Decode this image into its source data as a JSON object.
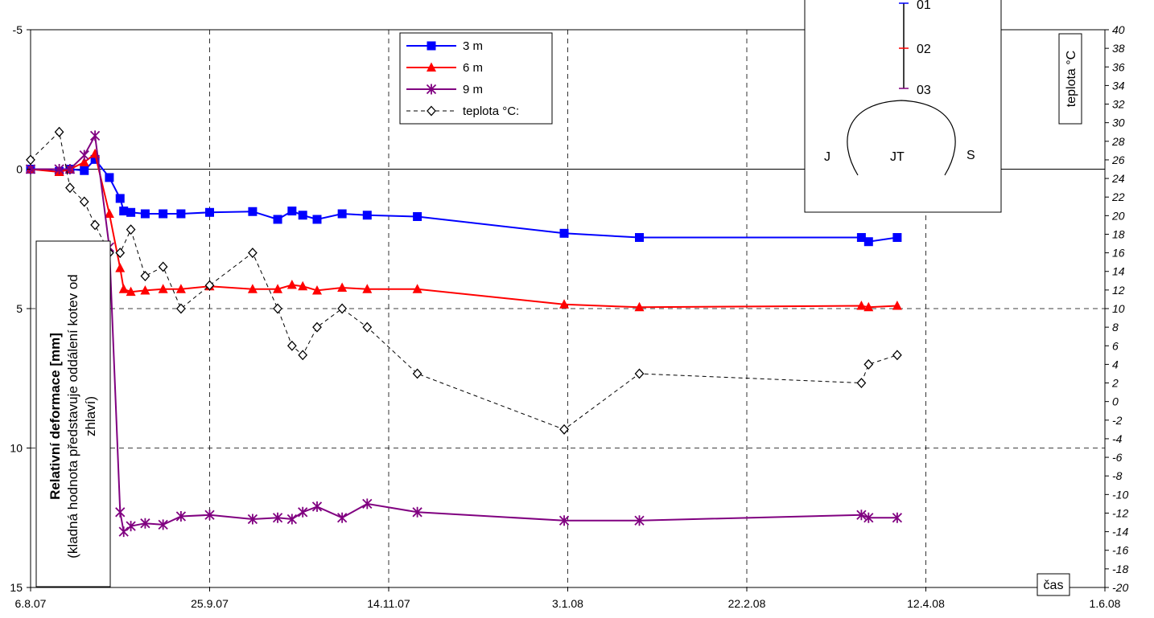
{
  "chart_data": {
    "type": "line",
    "y_axis_left": {
      "title": "Relativní deformace [mm]",
      "subtitle": "(kladná hodnota představuje oddálení kotev od zhlaví)",
      "range": [
        -5,
        15
      ],
      "inverted": true,
      "ticks": [
        "-5",
        "0",
        "5",
        "10",
        "15"
      ]
    },
    "y_axis_right": {
      "title": "teplota °C",
      "range": [
        -20,
        40
      ],
      "ticks": [
        "40",
        "38",
        "36",
        "34",
        "32",
        "30",
        "28",
        "26",
        "24",
        "22",
        "20",
        "18",
        "16",
        "14",
        "12",
        "10",
        "8",
        "6",
        "4",
        "2",
        "0",
        "-2",
        "-4",
        "-6",
        "-8",
        "-10",
        "-12",
        "-14",
        "-16",
        "-18",
        "-20"
      ]
    },
    "x_axis": {
      "title": "čas",
      "ticks": [
        {
          "label": "6.8.07",
          "day": 0
        },
        {
          "label": "25.9.07",
          "day": 50
        },
        {
          "label": "14.11.07",
          "day": 100
        },
        {
          "label": "3.1.08",
          "day": 150
        },
        {
          "label": "22.2.08",
          "day": 200
        },
        {
          "label": "12.4.08",
          "day": 250
        },
        {
          "label": "1.6.08",
          "day": 300
        }
      ],
      "range": [
        0,
        300
      ]
    },
    "series": [
      {
        "name": "3 m",
        "color": "#0000ff",
        "marker": "square",
        "axis": "left",
        "points": [
          [
            0,
            0
          ],
          [
            8,
            0.08
          ],
          [
            11,
            0
          ],
          [
            15,
            0.05
          ],
          [
            18,
            -0.35
          ],
          [
            22,
            0.3
          ],
          [
            25,
            1.05
          ],
          [
            26,
            1.5
          ],
          [
            28,
            1.55
          ],
          [
            32,
            1.6
          ],
          [
            37,
            1.6
          ],
          [
            42,
            1.6
          ],
          [
            50,
            1.55
          ],
          [
            62,
            1.52
          ],
          [
            69,
            1.8
          ],
          [
            73,
            1.5
          ],
          [
            76,
            1.65
          ],
          [
            80,
            1.8
          ],
          [
            87,
            1.6
          ],
          [
            94,
            1.65
          ],
          [
            108,
            1.7
          ],
          [
            149,
            2.3
          ],
          [
            170,
            2.45
          ],
          [
            232,
            2.45
          ],
          [
            234,
            2.6
          ],
          [
            242,
            2.45
          ]
        ]
      },
      {
        "name": "6 m",
        "color": "#ff0000",
        "marker": "triangle",
        "axis": "left",
        "points": [
          [
            0,
            0
          ],
          [
            8,
            0.1
          ],
          [
            11,
            0
          ],
          [
            15,
            -0.25
          ],
          [
            18,
            -0.55
          ],
          [
            22,
            1.6
          ],
          [
            25,
            3.55
          ],
          [
            26,
            4.3
          ],
          [
            28,
            4.4
          ],
          [
            32,
            4.35
          ],
          [
            37,
            4.3
          ],
          [
            42,
            4.3
          ],
          [
            50,
            4.2
          ],
          [
            62,
            4.3
          ],
          [
            69,
            4.3
          ],
          [
            73,
            4.15
          ],
          [
            76,
            4.2
          ],
          [
            80,
            4.35
          ],
          [
            87,
            4.25
          ],
          [
            94,
            4.3
          ],
          [
            108,
            4.3
          ],
          [
            149,
            4.85
          ],
          [
            170,
            4.95
          ],
          [
            232,
            4.9
          ],
          [
            234,
            4.95
          ],
          [
            242,
            4.9
          ]
        ]
      },
      {
        "name": "9 m",
        "color": "#800080",
        "marker": "star",
        "axis": "left",
        "points": [
          [
            0,
            0
          ],
          [
            8,
            0
          ],
          [
            11,
            0
          ],
          [
            15,
            -0.5
          ],
          [
            18,
            -1.2
          ],
          [
            22,
            2.8
          ],
          [
            25,
            12.3
          ],
          [
            26,
            13.0
          ],
          [
            28,
            12.8
          ],
          [
            32,
            12.7
          ],
          [
            37,
            12.75
          ],
          [
            42,
            12.45
          ],
          [
            50,
            12.4
          ],
          [
            62,
            12.55
          ],
          [
            69,
            12.5
          ],
          [
            73,
            12.55
          ],
          [
            76,
            12.3
          ],
          [
            80,
            12.1
          ],
          [
            87,
            12.5
          ],
          [
            94,
            12.0
          ],
          [
            108,
            12.3
          ],
          [
            149,
            12.6
          ],
          [
            170,
            12.6
          ],
          [
            232,
            12.4
          ],
          [
            234,
            12.5
          ],
          [
            242,
            12.5
          ]
        ]
      },
      {
        "name": "teplota °C:",
        "color": "#000000",
        "marker": "diamond",
        "axis": "right",
        "dashed": true,
        "points": [
          [
            0,
            26
          ],
          [
            8,
            29
          ],
          [
            11,
            23
          ],
          [
            15,
            21.5
          ],
          [
            18,
            19
          ],
          [
            22,
            16
          ],
          [
            25,
            16
          ],
          [
            28,
            18.5
          ],
          [
            32,
            13.5
          ],
          [
            37,
            14.5
          ],
          [
            42,
            10
          ],
          [
            50,
            12.5
          ],
          [
            62,
            16
          ],
          [
            69,
            10
          ],
          [
            73,
            6
          ],
          [
            76,
            5
          ],
          [
            80,
            8
          ],
          [
            87,
            10
          ],
          [
            94,
            8
          ],
          [
            108,
            3
          ],
          [
            149,
            -3
          ],
          [
            170,
            3
          ],
          [
            232,
            2
          ],
          [
            234,
            4
          ],
          [
            242,
            5
          ]
        ]
      }
    ],
    "inset": {
      "labels": [
        "01",
        "02",
        "03",
        "J",
        "JT",
        "S"
      ]
    },
    "grid": true,
    "legend": "top-center"
  }
}
